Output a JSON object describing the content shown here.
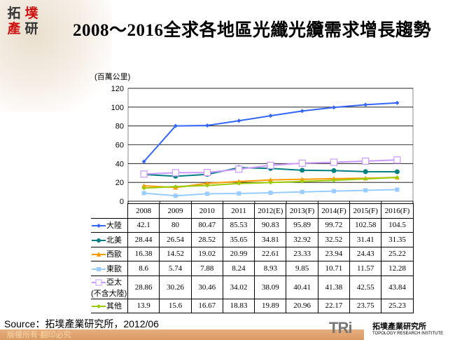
{
  "header": {
    "title": "2008～2016全求各地區光纖光纜需求增長趨勢",
    "logo_text": [
      "拓",
      "墣",
      "產",
      "研"
    ]
  },
  "colors": {
    "logo_dark": "#333333",
    "logo_red": "#cc1111"
  },
  "chart_data": {
    "type": "line",
    "title": "2008～2016全求各地區光纖光纜需求增長趨勢",
    "ylabel": "(百萬公里)",
    "ylim": [
      0,
      120
    ],
    "yticks": [
      0,
      20,
      40,
      60,
      80,
      100,
      120
    ],
    "grid": true,
    "legend": "table-left",
    "categories": [
      "2008",
      "2009",
      "2010",
      "2011",
      "2012(E)",
      "2013(F)",
      "2014(F)",
      "2015(F)",
      "2016(F)"
    ],
    "series": [
      {
        "name": "大陸",
        "color": "#3366ff",
        "marker": "diamond",
        "values": [
          42.1,
          80,
          80.47,
          85.53,
          90.83,
          95.89,
          99.72,
          102.58,
          104.5
        ]
      },
      {
        "name": "北美",
        "color": "#008080",
        "marker": "circle",
        "values": [
          28.44,
          26.54,
          28.52,
          35.65,
          34.81,
          32.92,
          32.52,
          31.41,
          31.35
        ]
      },
      {
        "name": "西歐",
        "color": "#ff9900",
        "marker": "triangle",
        "values": [
          16.38,
          14.52,
          19.02,
          20.99,
          22.61,
          23.33,
          23.94,
          24.43,
          25.22
        ]
      },
      {
        "name": "東歐",
        "color": "#99ccff",
        "marker": "square",
        "values": [
          8.6,
          5.74,
          7.88,
          8.24,
          8.93,
          9.85,
          10.71,
          11.57,
          12.28
        ]
      },
      {
        "name": "亞太(不含大陸)",
        "color": "#cc99ff",
        "marker": "open-square",
        "values": [
          28.86,
          30.26,
          30.46,
          34.02,
          38.09,
          40.41,
          41.38,
          42.55,
          43.84
        ]
      },
      {
        "name": "其他",
        "color": "#99cc00",
        "marker": "diamond",
        "values": [
          13.9,
          15.6,
          16.67,
          18.83,
          19.89,
          20.96,
          22.17,
          23.75,
          25.23
        ]
      }
    ]
  },
  "footer": {
    "source": "Source：拓墣產業研究所，2012/06",
    "copyright": "版權所有‧翻印必究",
    "brand_logo": "TRi",
    "brand_cn": "拓墣產業研究所",
    "brand_en": "TOPOLOGY RESEARCH INSTITUTE"
  }
}
